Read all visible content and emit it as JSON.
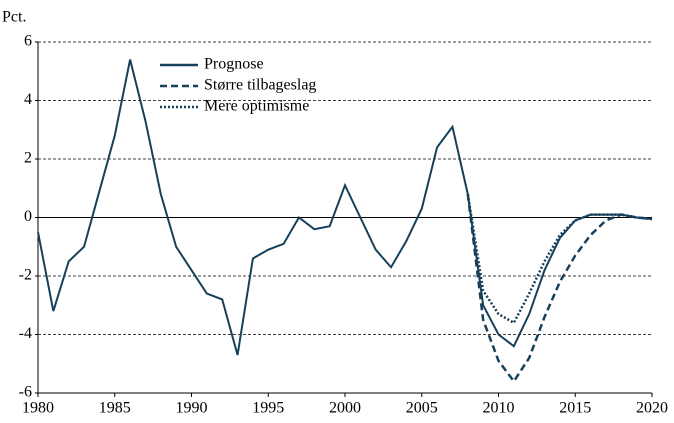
{
  "chart_data": {
    "type": "line",
    "ylabel": "Pct.",
    "x": [
      1980,
      1981,
      1982,
      1983,
      1984,
      1985,
      1986,
      1987,
      1988,
      1989,
      1990,
      1991,
      1992,
      1993,
      1994,
      1995,
      1996,
      1997,
      1998,
      1999,
      2000,
      2001,
      2002,
      2003,
      2004,
      2005,
      2006,
      2007,
      2008,
      2009,
      2010,
      2011,
      2012,
      2013,
      2014,
      2015,
      2016,
      2017,
      2018,
      2019,
      2020
    ],
    "series": [
      {
        "name": "Prognose",
        "color": "#17405a",
        "style": "solid",
        "values": [
          -0.5,
          -3.2,
          -1.5,
          -1.0,
          0.9,
          2.8,
          5.4,
          3.3,
          0.8,
          -1.0,
          -1.8,
          -2.6,
          -2.8,
          -4.7,
          -1.4,
          -1.1,
          -0.9,
          0.0,
          -0.4,
          -0.3,
          1.1,
          0.0,
          -1.1,
          -1.7,
          -0.8,
          0.3,
          2.4,
          3.1,
          0.8,
          -3.0,
          -4.0,
          -4.4,
          -3.3,
          -1.8,
          -0.7,
          -0.1,
          0.1,
          0.1,
          0.1,
          0.0,
          -0.05
        ]
      },
      {
        "name": "Større tilbageslag",
        "color": "#17405a",
        "style": "dashed",
        "values": [
          null,
          null,
          null,
          null,
          null,
          null,
          null,
          null,
          null,
          null,
          null,
          null,
          null,
          null,
          null,
          null,
          null,
          null,
          null,
          null,
          null,
          null,
          null,
          null,
          null,
          null,
          null,
          null,
          0.8,
          -3.5,
          -4.9,
          -5.6,
          -4.8,
          -3.4,
          -2.2,
          -1.3,
          -0.6,
          -0.1,
          0.1,
          0.0,
          -0.05
        ]
      },
      {
        "name": "Mere optimisme",
        "color": "#17405a",
        "style": "dotted",
        "values": [
          null,
          null,
          null,
          null,
          null,
          null,
          null,
          null,
          null,
          null,
          null,
          null,
          null,
          null,
          null,
          null,
          null,
          null,
          null,
          null,
          null,
          null,
          null,
          null,
          null,
          null,
          null,
          null,
          0.8,
          -2.5,
          -3.3,
          -3.6,
          -2.6,
          -1.5,
          -0.6,
          -0.1,
          0.1,
          0.1,
          0.1,
          0.0,
          -0.05
        ]
      }
    ],
    "xlim": [
      1980,
      2020
    ],
    "xticks": [
      1980,
      1985,
      1990,
      1995,
      2000,
      2005,
      2010,
      2015,
      2020
    ],
    "ylim": [
      -6,
      6
    ],
    "yticks": [
      -6,
      -4,
      -2,
      0,
      2,
      4,
      6
    ],
    "grid": true,
    "legend": "upper left"
  }
}
